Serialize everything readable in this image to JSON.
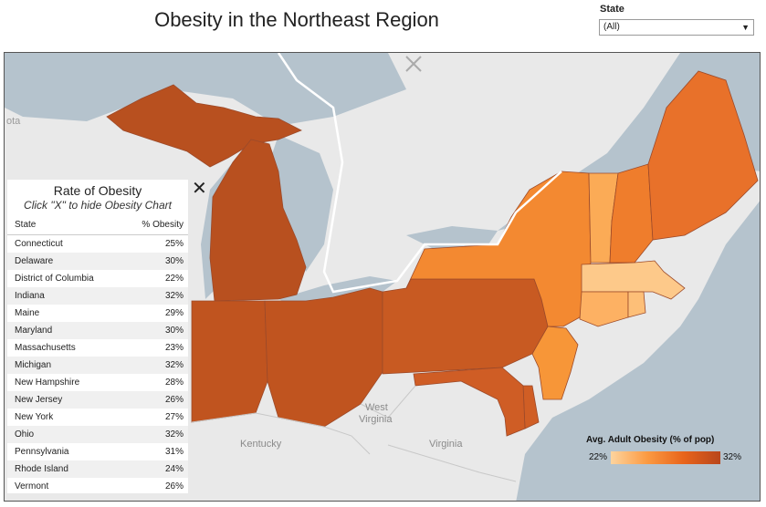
{
  "title": "Obesity in the Northeast Region",
  "filter": {
    "label": "State",
    "value": "(All)"
  },
  "map": {
    "labels": {
      "west_virginia_1": "West",
      "west_virginia_2": "Virginia",
      "kentucky": "Kentucky",
      "virginia": "Virginia",
      "fragment_left": "ota"
    },
    "colors": {
      "water": "#b5c3cd",
      "land": "#e9e9e9",
      "low": "#fdd49e",
      "high": "#b8461b"
    }
  },
  "panel": {
    "title": "Rate of Obesity",
    "subtitle": "Click \"X\" to hide Obesity Chart",
    "close": "✕",
    "col_state": "State",
    "col_pct": "% Obesity",
    "rows": [
      {
        "state": "Connecticut",
        "pct": "25%"
      },
      {
        "state": "Delaware",
        "pct": "30%"
      },
      {
        "state": "District of Columbia",
        "pct": "22%"
      },
      {
        "state": "Indiana",
        "pct": "32%"
      },
      {
        "state": "Maine",
        "pct": "29%"
      },
      {
        "state": "Maryland",
        "pct": "30%"
      },
      {
        "state": "Massachusetts",
        "pct": "23%"
      },
      {
        "state": "Michigan",
        "pct": "32%"
      },
      {
        "state": "New Hampshire",
        "pct": "28%"
      },
      {
        "state": "New Jersey",
        "pct": "26%"
      },
      {
        "state": "New York",
        "pct": "27%"
      },
      {
        "state": "Ohio",
        "pct": "32%"
      },
      {
        "state": "Pennsylvania",
        "pct": "31%"
      },
      {
        "state": "Rhode Island",
        "pct": "24%"
      },
      {
        "state": "Vermont",
        "pct": "26%"
      }
    ]
  },
  "legend": {
    "title": "Avg. Adult Obesity (% of pop)",
    "min": "22%",
    "max": "32%"
  }
}
